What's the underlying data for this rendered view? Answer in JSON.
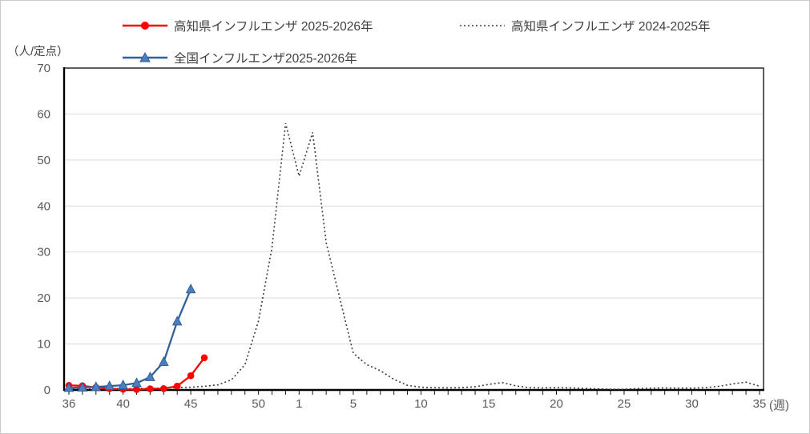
{
  "chart": {
    "y_axis_unit_label": "（人/定点）",
    "x_axis_unit_label": "(週)"
  },
  "chart_data": {
    "type": "line",
    "title": "",
    "xlabel": "週 (week of year, season runs week 36 to week 35)",
    "ylabel": "人/定点 (patients per sentinel)",
    "ylim": [
      0,
      70
    ],
    "y_ticks": [
      0,
      10,
      20,
      30,
      40,
      50,
      60,
      70
    ],
    "grid": "horizontal-light-gray",
    "legend_position": "top",
    "categories": [
      36,
      37,
      38,
      39,
      40,
      41,
      42,
      43,
      44,
      45,
      46,
      47,
      48,
      49,
      50,
      51,
      52,
      1,
      2,
      3,
      4,
      5,
      6,
      7,
      8,
      9,
      10,
      11,
      12,
      13,
      14,
      15,
      16,
      17,
      18,
      19,
      20,
      21,
      22,
      23,
      24,
      25,
      26,
      27,
      28,
      29,
      30,
      31,
      32,
      33,
      34,
      35
    ],
    "x_ticks": [
      {
        "index": 0,
        "label": "36"
      },
      {
        "index": 4,
        "label": "40"
      },
      {
        "index": 9,
        "label": "45"
      },
      {
        "index": 14,
        "label": "50"
      },
      {
        "index": 17,
        "label": "1"
      },
      {
        "index": 21,
        "label": "5"
      },
      {
        "index": 26,
        "label": "10"
      },
      {
        "index": 31,
        "label": "15"
      },
      {
        "index": 36,
        "label": "20"
      },
      {
        "index": 41,
        "label": "25"
      },
      {
        "index": 46,
        "label": "30"
      },
      {
        "index": 51,
        "label": "35"
      }
    ],
    "series": [
      {
        "name": "高知県インフルエンザ 2025-2026年",
        "color": "#FF0000",
        "line_style": "solid",
        "marker": "circle",
        "start_index": 0,
        "values": [
          1.0,
          0.9,
          0.55,
          0.3,
          0.15,
          0.1,
          0.25,
          0.3,
          0.85,
          3.1,
          7.0
        ]
      },
      {
        "name": "高知県インフルエンザ 2024-2025年",
        "color": "#3b3b3b",
        "line_style": "dotted",
        "marker": "none",
        "start_index": 0,
        "values": [
          0.3,
          0.25,
          0.2,
          0.25,
          0.3,
          0.3,
          0.35,
          0.4,
          0.5,
          0.6,
          0.8,
          1.1,
          2.2,
          5.5,
          15,
          31,
          58,
          46.5,
          56,
          32,
          20,
          8,
          5.5,
          4.2,
          2.3,
          1.0,
          0.6,
          0.5,
          0.45,
          0.5,
          0.7,
          1.2,
          1.6,
          0.9,
          0.5,
          0.45,
          0.5,
          0.45,
          0.35,
          0.25,
          0.15,
          0.15,
          0.3,
          0.4,
          0.45,
          0.4,
          0.4,
          0.5,
          0.8,
          1.3,
          1.7,
          0.8
        ]
      },
      {
        "name": "全国インフルエンザ2025-2026年",
        "color": "#31609B",
        "marker_fill": "#4A7EBE",
        "line_style": "solid",
        "marker": "triangle",
        "start_index": 0,
        "values": [
          0.45,
          0.55,
          0.65,
          0.85,
          1.05,
          1.5,
          2.8,
          6.1,
          14.9,
          21.9
        ]
      }
    ],
    "draw_order": [
      1,
      0,
      2
    ]
  }
}
